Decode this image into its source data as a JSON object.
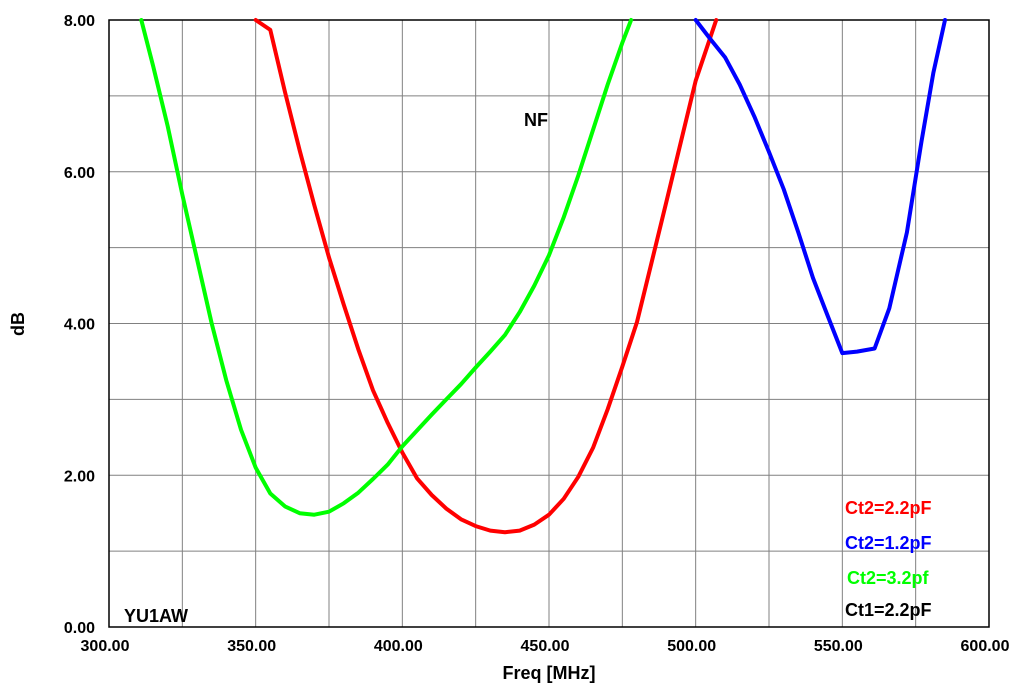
{
  "chart_data": {
    "type": "line",
    "title": "NF",
    "xlabel": "Freq [MHz]",
    "ylabel": "dB",
    "xlim": [
      300,
      600
    ],
    "ylim": [
      0,
      8
    ],
    "x_ticks": [
      300,
      350,
      400,
      450,
      500,
      550,
      600
    ],
    "x_tick_labels": [
      "300.00",
      "350.00",
      "400.00",
      "450.00",
      "500.00",
      "550.00",
      "600.00"
    ],
    "y_ticks": [
      0,
      2,
      4,
      6,
      8
    ],
    "y_tick_labels": [
      "0.00",
      "2.00",
      "4.00",
      "6.00",
      "8.00"
    ],
    "grid": true,
    "legend_position": "bottom-right",
    "series": [
      {
        "name": "Ct2=2.2pF",
        "color": "#ff0000",
        "points": [
          [
            350,
            8.0
          ],
          [
            355,
            7.87
          ],
          [
            360,
            7.05
          ],
          [
            365,
            6.28
          ],
          [
            370,
            5.56
          ],
          [
            375,
            4.87
          ],
          [
            380,
            4.25
          ],
          [
            385,
            3.66
          ],
          [
            390,
            3.12
          ],
          [
            395,
            2.69
          ],
          [
            400,
            2.3
          ],
          [
            405,
            1.96
          ],
          [
            410,
            1.74
          ],
          [
            415,
            1.56
          ],
          [
            420,
            1.42
          ],
          [
            425,
            1.33
          ],
          [
            430,
            1.27
          ],
          [
            435,
            1.25
          ],
          [
            440,
            1.27
          ],
          [
            445,
            1.35
          ],
          [
            450,
            1.48
          ],
          [
            455,
            1.69
          ],
          [
            460,
            1.98
          ],
          [
            465,
            2.36
          ],
          [
            470,
            2.87
          ],
          [
            475,
            3.43
          ],
          [
            480,
            4.02
          ],
          [
            485,
            4.81
          ],
          [
            490,
            5.6
          ],
          [
            495,
            6.4
          ],
          [
            500,
            7.2
          ],
          [
            507,
            8.0
          ]
        ]
      },
      {
        "name": "Ct2=1.2pF",
        "color": "#0000ff",
        "points": [
          [
            500,
            8.0
          ],
          [
            505,
            7.75
          ],
          [
            510,
            7.51
          ],
          [
            515,
            7.15
          ],
          [
            520,
            6.73
          ],
          [
            525,
            6.26
          ],
          [
            530,
            5.77
          ],
          [
            535,
            5.2
          ],
          [
            540,
            4.6
          ],
          [
            545,
            4.1
          ],
          [
            550,
            3.61
          ],
          [
            555,
            3.63
          ],
          [
            561,
            3.67
          ],
          [
            566,
            4.2
          ],
          [
            572,
            5.2
          ],
          [
            577,
            6.4
          ],
          [
            581,
            7.3
          ],
          [
            585,
            8.0
          ]
        ]
      },
      {
        "name": "Ct2=3.2pf",
        "color": "#00ff00",
        "points": [
          [
            311,
            8.0
          ],
          [
            315,
            7.4
          ],
          [
            320,
            6.6
          ],
          [
            325,
            5.7
          ],
          [
            330,
            4.85
          ],
          [
            335,
            4.0
          ],
          [
            340,
            3.25
          ],
          [
            345,
            2.6
          ],
          [
            350,
            2.1
          ],
          [
            355,
            1.76
          ],
          [
            360,
            1.59
          ],
          [
            365,
            1.5
          ],
          [
            370,
            1.48
          ],
          [
            375,
            1.52
          ],
          [
            380,
            1.63
          ],
          [
            385,
            1.77
          ],
          [
            390,
            1.95
          ],
          [
            395,
            2.14
          ],
          [
            400,
            2.38
          ],
          [
            405,
            2.59
          ],
          [
            410,
            2.8
          ],
          [
            415,
            3.0
          ],
          [
            420,
            3.2
          ],
          [
            425,
            3.42
          ],
          [
            430,
            3.63
          ],
          [
            435,
            3.85
          ],
          [
            440,
            4.15
          ],
          [
            445,
            4.5
          ],
          [
            450,
            4.9
          ],
          [
            455,
            5.4
          ],
          [
            460,
            5.95
          ],
          [
            465,
            6.55
          ],
          [
            470,
            7.15
          ],
          [
            475,
            7.7
          ],
          [
            478,
            8.0
          ]
        ]
      }
    ],
    "annotations": [
      {
        "text": "Ct2=2.2pF",
        "color": "#ff0000"
      },
      {
        "text": "Ct2=1.2pF",
        "color": "#0000ff"
      },
      {
        "text": "Ct2=3.2pf",
        "color": "#00ff00"
      },
      {
        "text": "Ct1=2.2pF",
        "color": "#000000"
      },
      {
        "text": "YU1AW",
        "color": "#000000"
      }
    ]
  }
}
